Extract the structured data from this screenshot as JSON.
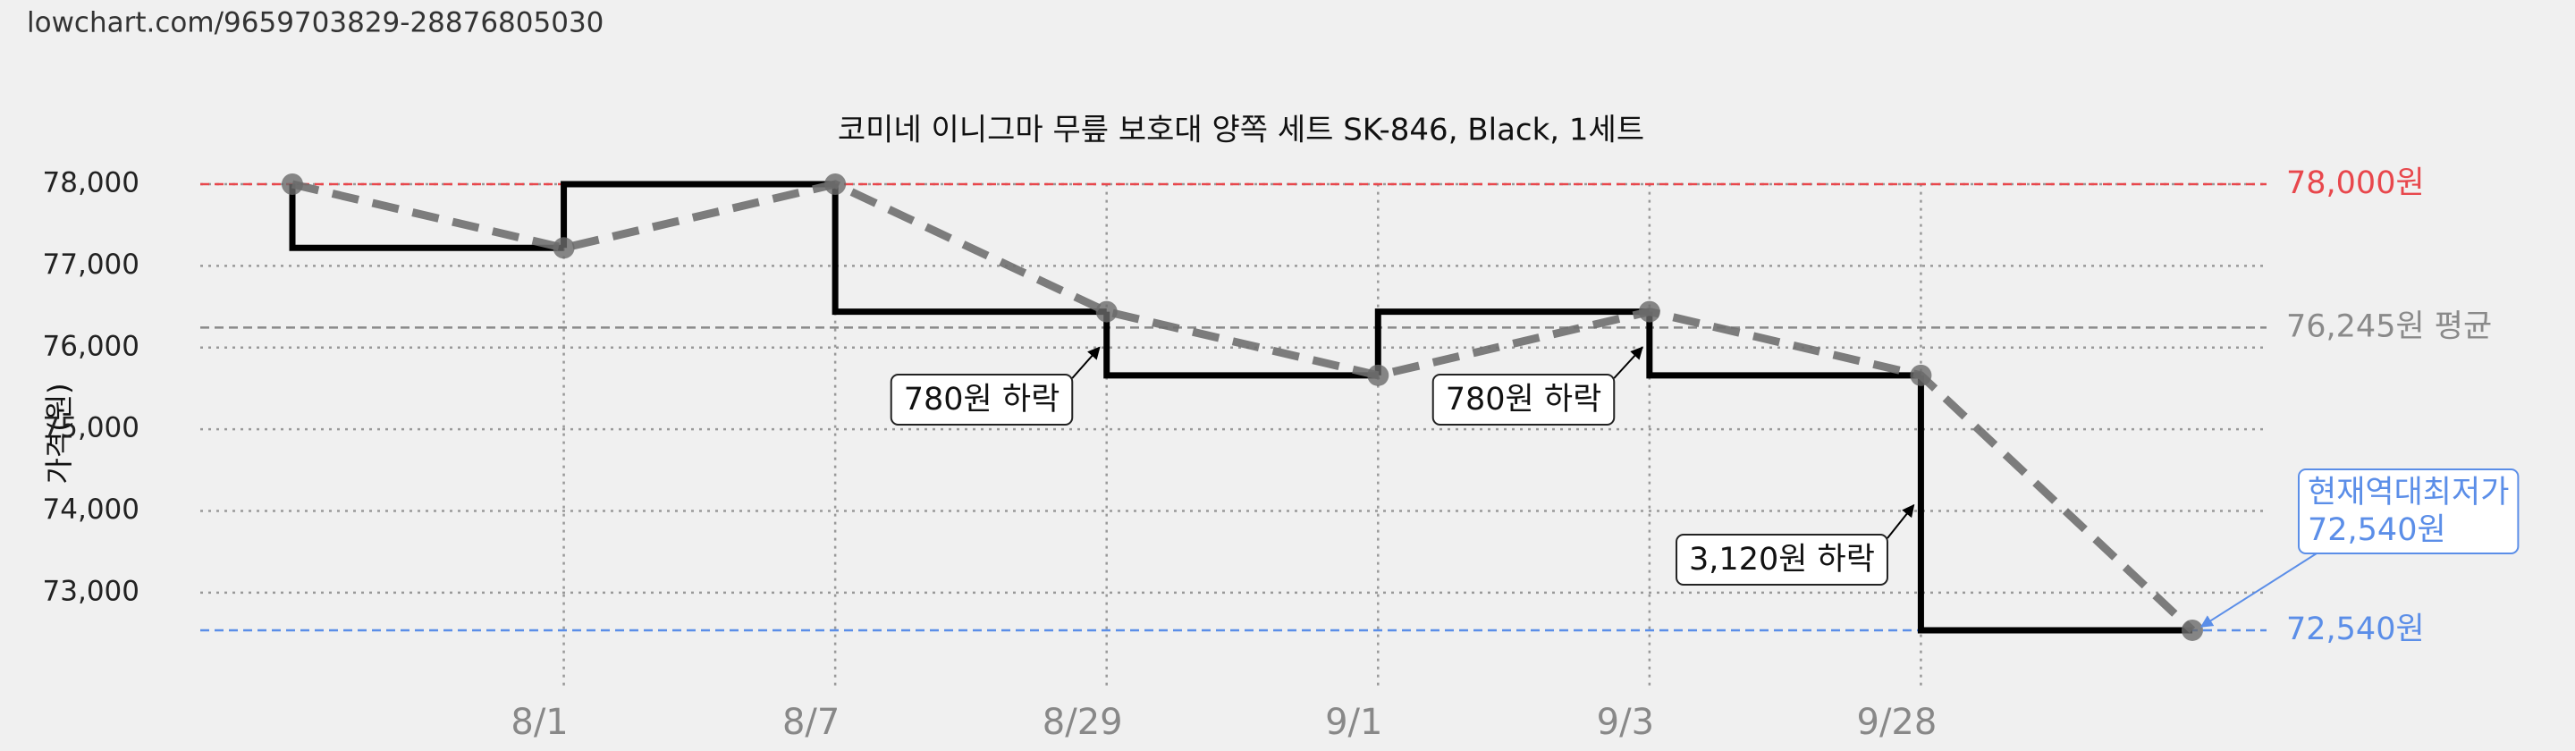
{
  "header": {
    "url": "lowchart.com/9659703829-28876805030"
  },
  "chart_data": {
    "type": "line",
    "title": "코미네 이니그마 무릎 보호대 양쪽 세트 SK-846, Black, 1세트",
    "y_label": "가격(원)",
    "categories": [
      null,
      "8/1",
      "8/7",
      "8/29",
      "9/1",
      "9/3",
      "9/28",
      null
    ],
    "values": [
      78000,
      77220,
      78000,
      76440,
      75660,
      76440,
      75660,
      72540
    ],
    "ylim": [
      71850,
      78300
    ],
    "yticks": [
      {
        "value": 73000,
        "label": "73,000"
      },
      {
        "value": 74000,
        "label": "74,000"
      },
      {
        "value": 75000,
        "label": "75,000"
      },
      {
        "value": 76000,
        "label": "76,000"
      },
      {
        "value": 77000,
        "label": "77,000"
      },
      {
        "value": 78000,
        "label": "78,000"
      }
    ],
    "grid": true,
    "step_color": "#000000",
    "trend_color": "#6f6f6f",
    "reference_lines": [
      {
        "value": 78000,
        "label": "78,000원",
        "color": "#e8474c"
      },
      {
        "value": 76245,
        "label": "76,245원 평균",
        "color": "#8a8a8a"
      },
      {
        "value": 72540,
        "label": "72,540원",
        "color": "#5b8ee8"
      }
    ],
    "annotations": [
      "780원 하락",
      "780원 하락",
      "3,120원 하락"
    ],
    "callout": [
      "현재역대최저가",
      "72,540원"
    ]
  }
}
